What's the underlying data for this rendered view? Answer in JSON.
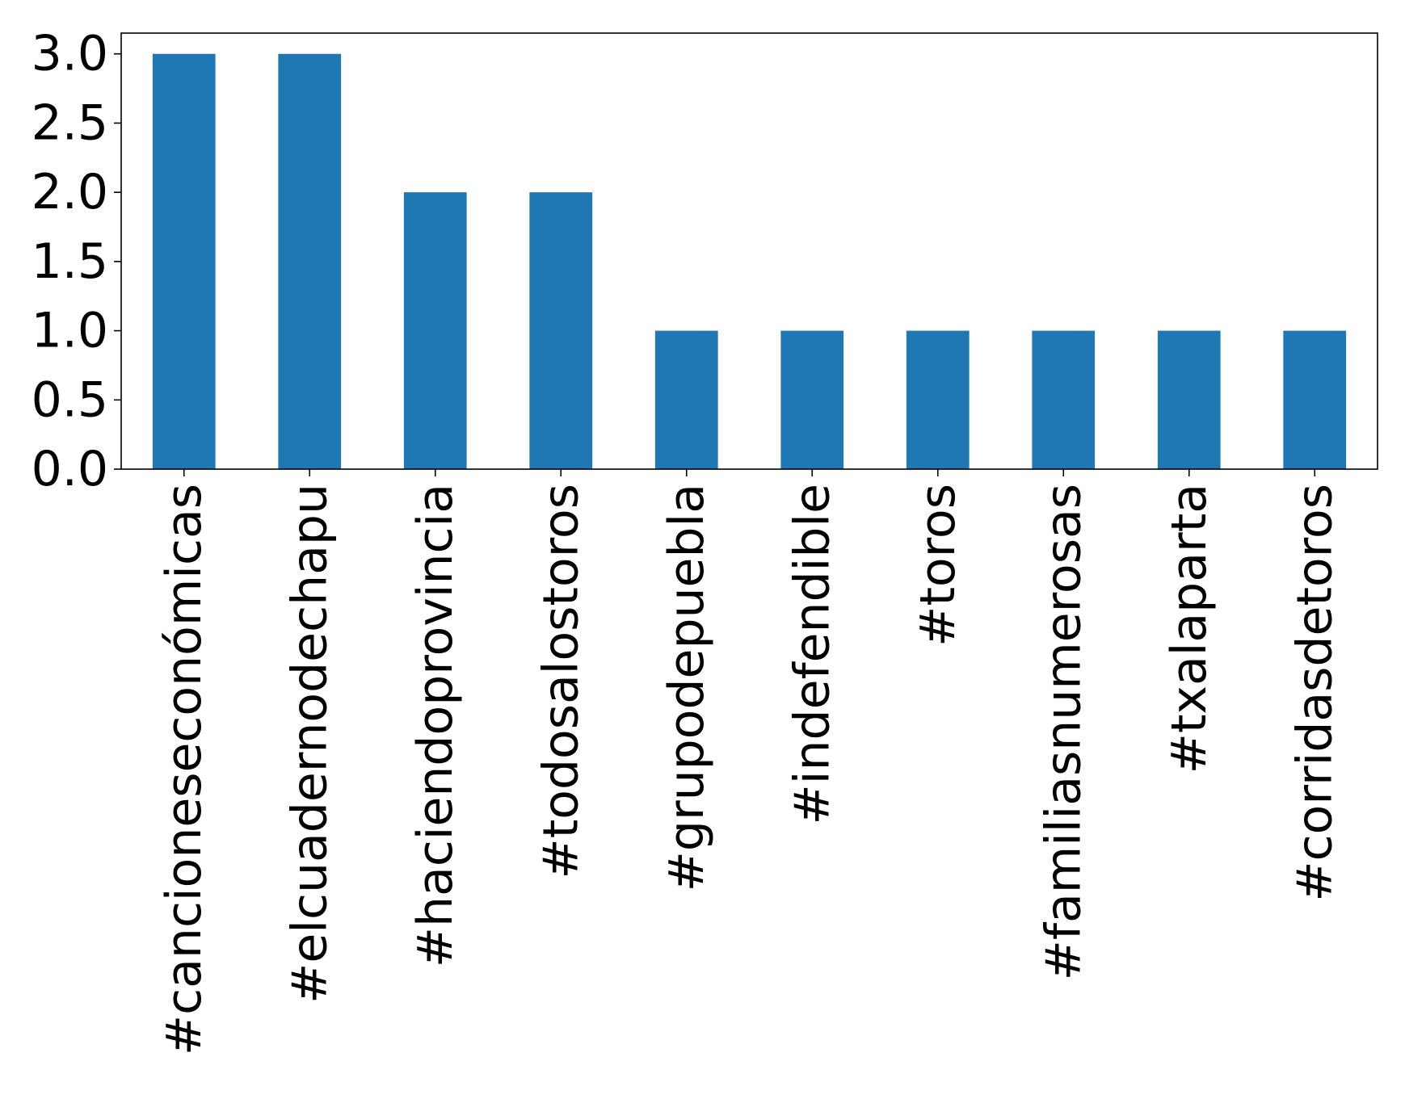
{
  "chart_data": {
    "type": "bar",
    "title": "",
    "xlabel": "",
    "ylabel": "",
    "categories": [
      "#cancioneseconómicas",
      "#elcuadernodechapu",
      "#haciendoprovincia",
      "#todosalostoros",
      "#grupodepuebla",
      "#indefendible",
      "#toros",
      "#familiasnumerosas",
      "#txalaparta",
      "#corridasdetoros"
    ],
    "values": [
      3,
      3,
      2,
      2,
      1,
      1,
      1,
      1,
      1,
      1
    ],
    "ylim": [
      0,
      3.15
    ],
    "yticks": [
      "0.0",
      "0.5",
      "1.0",
      "1.5",
      "2.0",
      "2.5",
      "3.0"
    ],
    "bar_color": "#1f77b4",
    "grid": false,
    "legend": "none",
    "x_tick_rotation": "vertical"
  }
}
